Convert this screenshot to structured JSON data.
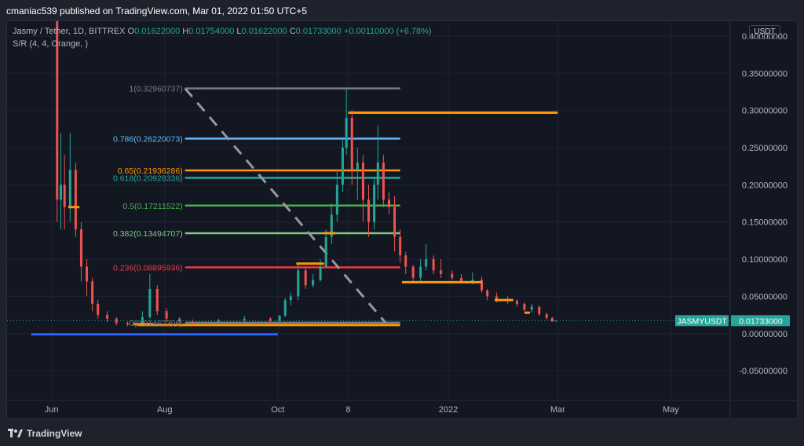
{
  "header": {
    "publisher": "cmaniac539 published on TradingView.com, Mar 01, 2022 01:50 UTC+5"
  },
  "symbol": {
    "title": "Jasmy / Tether, 1D, BITTREX",
    "open_label": "O",
    "open": "0.01622000",
    "high_label": "H",
    "high": "0.01754000",
    "low_label": "L",
    "low": "0.01622000",
    "close_label": "C",
    "close": "0.01733000",
    "change": "+0.00110000 (+6.78%)"
  },
  "indicator": {
    "label": "S/R (4, 4, Orange, )"
  },
  "currency_button": "USDT",
  "footer": {
    "brand": "TradingView"
  },
  "colors": {
    "background": "#131722",
    "up": "#26a69a",
    "down": "#ef5350",
    "support_resistance": "#ff9800",
    "price_tag": "#26a69a"
  },
  "chart_data": {
    "type": "candlestick",
    "symbol": "JASMYUSDT",
    "last_price": "0.01733000",
    "ylim": [
      -0.09,
      0.42
    ],
    "xlim": [
      "2021-05-08",
      "2022-06-02"
    ],
    "y_ticks": [
      "0.40000000",
      "0.35000000",
      "0.30000000",
      "0.25000000",
      "0.20000000",
      "0.15000000",
      "0.10000000",
      "0.05000000",
      "0.00000000",
      "-0.05000000"
    ],
    "y_tick_values": [
      0.4,
      0.35,
      0.3,
      0.25,
      0.2,
      0.15,
      0.1,
      0.05,
      0.0,
      -0.05
    ],
    "x_ticks": [
      {
        "label": "Jun",
        "date": "2021-06-01"
      },
      {
        "label": "Aug",
        "date": "2021-08-01"
      },
      {
        "label": "Oct",
        "date": "2021-10-01"
      },
      {
        "label": "8",
        "date": "2021-11-08"
      },
      {
        "label": "2022",
        "date": "2022-01-01"
      },
      {
        "label": "Mar",
        "date": "2022-03-01"
      },
      {
        "label": "May",
        "date": "2022-05-01"
      }
    ],
    "fib_retracement": {
      "start": "2021-08-12",
      "end": "2021-12-06",
      "trend_from": {
        "date": "2021-08-12",
        "value": 0.3296
      },
      "trend_to": {
        "date": "2021-11-28",
        "value": 0.015
      },
      "levels": [
        {
          "ratio": "1",
          "value": 0.32960737,
          "label": "1(0.32960737)",
          "color": "#787b86"
        },
        {
          "ratio": "0.786",
          "value": 0.26220073,
          "label": "0.786(0.26220073)",
          "color": "#64b5f6"
        },
        {
          "ratio": "0.65",
          "value": 0.21936286,
          "label": "0.65(0.21936286)",
          "color": "#ff9800"
        },
        {
          "ratio": "0.618",
          "value": 0.20928336,
          "label": "0.618(0.20928336)",
          "color": "#26a69a"
        },
        {
          "ratio": "0.5",
          "value": 0.17211522,
          "label": "0.5(0.17211522)",
          "color": "#4caf50"
        },
        {
          "ratio": "0.382",
          "value": 0.13494707,
          "label": "0.382(0.13494707)",
          "color": "#81c784"
        },
        {
          "ratio": "0.236",
          "value": 0.08895936,
          "label": "0.236(0.08895936)",
          "color": "#f23645"
        },
        {
          "ratio": "0",
          "value": 0.01462306,
          "label": "0(0.01462306)",
          "color": "#787b86"
        }
      ]
    },
    "horizontal_lines": [
      {
        "from": "2021-07-17",
        "to": "2021-12-06",
        "value": 0.0115,
        "color": "#ff9800"
      },
      {
        "from": "2021-11-08",
        "to": "2022-03-01",
        "value": 0.297,
        "color": "#ff9800"
      },
      {
        "from": "2021-05-21",
        "to": "2021-10-01",
        "value": -0.001,
        "color": "#2962ff"
      }
    ],
    "sr_marks": [
      {
        "from": "2021-06-10",
        "to": "2021-06-16",
        "value": 0.17
      },
      {
        "from": "2021-07-15",
        "to": "2021-07-26",
        "value": 0.0125
      },
      {
        "from": "2021-10-11",
        "to": "2021-10-26",
        "value": 0.094
      },
      {
        "from": "2021-10-26",
        "to": "2021-11-01",
        "value": 0.135
      },
      {
        "from": "2021-12-07",
        "to": "2022-01-19",
        "value": 0.069
      },
      {
        "from": "2022-01-26",
        "to": "2022-02-05",
        "value": 0.045
      },
      {
        "from": "2022-02-11",
        "to": "2022-02-14",
        "value": 0.028
      }
    ],
    "series": [
      {
        "name": "JASMYUSDT",
        "points": [
          [
            "2021-06-04",
            0.42,
            0.42,
            0.15,
            0.18
          ],
          [
            "2021-06-06",
            0.18,
            0.27,
            0.14,
            0.2
          ],
          [
            "2021-06-08",
            0.2,
            0.24,
            0.14,
            0.17
          ],
          [
            "2021-06-11",
            0.17,
            0.27,
            0.15,
            0.22
          ],
          [
            "2021-06-14",
            0.22,
            0.23,
            0.13,
            0.14
          ],
          [
            "2021-06-17",
            0.14,
            0.15,
            0.07,
            0.09
          ],
          [
            "2021-06-20",
            0.09,
            0.1,
            0.05,
            0.07
          ],
          [
            "2021-06-23",
            0.07,
            0.075,
            0.03,
            0.04
          ],
          [
            "2021-06-26",
            0.04,
            0.045,
            0.02,
            0.025
          ],
          [
            "2021-07-01",
            0.025,
            0.03,
            0.015,
            0.02
          ],
          [
            "2021-07-06",
            0.02,
            0.022,
            0.011,
            0.014
          ],
          [
            "2021-07-12",
            0.014,
            0.016,
            0.01,
            0.012
          ],
          [
            "2021-07-20",
            0.012,
            0.03,
            0.011,
            0.022
          ],
          [
            "2021-07-24",
            0.022,
            0.08,
            0.02,
            0.06
          ],
          [
            "2021-07-28",
            0.06,
            0.065,
            0.025,
            0.03
          ],
          [
            "2021-08-02",
            0.03,
            0.034,
            0.016,
            0.02
          ],
          [
            "2021-08-09",
            0.02,
            0.022,
            0.014,
            0.016
          ],
          [
            "2021-08-16",
            0.016,
            0.019,
            0.014,
            0.015
          ],
          [
            "2021-08-30",
            0.015,
            0.02,
            0.014,
            0.018
          ],
          [
            "2021-09-13",
            0.018,
            0.024,
            0.016,
            0.02
          ],
          [
            "2021-09-27",
            0.02,
            0.022,
            0.015,
            0.017
          ],
          [
            "2021-10-02",
            0.017,
            0.025,
            0.016,
            0.024
          ],
          [
            "2021-10-05",
            0.024,
            0.048,
            0.022,
            0.045
          ],
          [
            "2021-10-08",
            0.045,
            0.055,
            0.038,
            0.05
          ],
          [
            "2021-10-12",
            0.05,
            0.095,
            0.045,
            0.085
          ],
          [
            "2021-10-16",
            0.085,
            0.09,
            0.06,
            0.065
          ],
          [
            "2021-10-20",
            0.065,
            0.08,
            0.062,
            0.072
          ],
          [
            "2021-10-24",
            0.072,
            0.1,
            0.07,
            0.09
          ],
          [
            "2021-10-27",
            0.09,
            0.14,
            0.088,
            0.13
          ],
          [
            "2021-10-30",
            0.13,
            0.175,
            0.12,
            0.16
          ],
          [
            "2021-11-02",
            0.16,
            0.22,
            0.15,
            0.2
          ],
          [
            "2021-11-05",
            0.2,
            0.26,
            0.19,
            0.25
          ],
          [
            "2021-11-07",
            0.25,
            0.33,
            0.24,
            0.29
          ],
          [
            "2021-11-10",
            0.29,
            0.3,
            0.2,
            0.22
          ],
          [
            "2021-11-13",
            0.22,
            0.25,
            0.18,
            0.23
          ],
          [
            "2021-11-16",
            0.23,
            0.24,
            0.15,
            0.18
          ],
          [
            "2021-11-19",
            0.18,
            0.2,
            0.13,
            0.15
          ],
          [
            "2021-11-22",
            0.15,
            0.21,
            0.14,
            0.2
          ],
          [
            "2021-11-24",
            0.2,
            0.28,
            0.18,
            0.23
          ],
          [
            "2021-11-27",
            0.23,
            0.24,
            0.17,
            0.18
          ],
          [
            "2021-11-30",
            0.18,
            0.19,
            0.16,
            0.17
          ],
          [
            "2021-12-03",
            0.17,
            0.185,
            0.11,
            0.13
          ],
          [
            "2021-12-06",
            0.13,
            0.14,
            0.095,
            0.105
          ],
          [
            "2021-12-09",
            0.105,
            0.11,
            0.08,
            0.09
          ],
          [
            "2021-12-13",
            0.09,
            0.092,
            0.07,
            0.075
          ],
          [
            "2021-12-17",
            0.075,
            0.1,
            0.07,
            0.09
          ],
          [
            "2021-12-20",
            0.09,
            0.12,
            0.085,
            0.1
          ],
          [
            "2021-12-24",
            0.1,
            0.105,
            0.08,
            0.085
          ],
          [
            "2021-12-28",
            0.085,
            0.1,
            0.075,
            0.08
          ],
          [
            "2022-01-03",
            0.08,
            0.085,
            0.072,
            0.075
          ],
          [
            "2022-01-08",
            0.075,
            0.08,
            0.068,
            0.07
          ],
          [
            "2022-01-14",
            0.07,
            0.082,
            0.066,
            0.072
          ],
          [
            "2022-01-19",
            0.072,
            0.076,
            0.055,
            0.058
          ],
          [
            "2022-01-22",
            0.058,
            0.06,
            0.045,
            0.05
          ],
          [
            "2022-01-27",
            0.05,
            0.055,
            0.042,
            0.046
          ],
          [
            "2022-02-02",
            0.046,
            0.05,
            0.04,
            0.044
          ],
          [
            "2022-02-07",
            0.044,
            0.046,
            0.036,
            0.04
          ],
          [
            "2022-02-11",
            0.04,
            0.042,
            0.03,
            0.032
          ],
          [
            "2022-02-15",
            0.032,
            0.04,
            0.028,
            0.036
          ],
          [
            "2022-02-19",
            0.036,
            0.037,
            0.024,
            0.026
          ],
          [
            "2022-02-23",
            0.026,
            0.028,
            0.019,
            0.021
          ],
          [
            "2022-02-26",
            0.021,
            0.022,
            0.016,
            0.0162
          ],
          [
            "2022-02-28",
            0.01622,
            0.01754,
            0.01622,
            0.01733
          ]
        ]
      }
    ]
  }
}
